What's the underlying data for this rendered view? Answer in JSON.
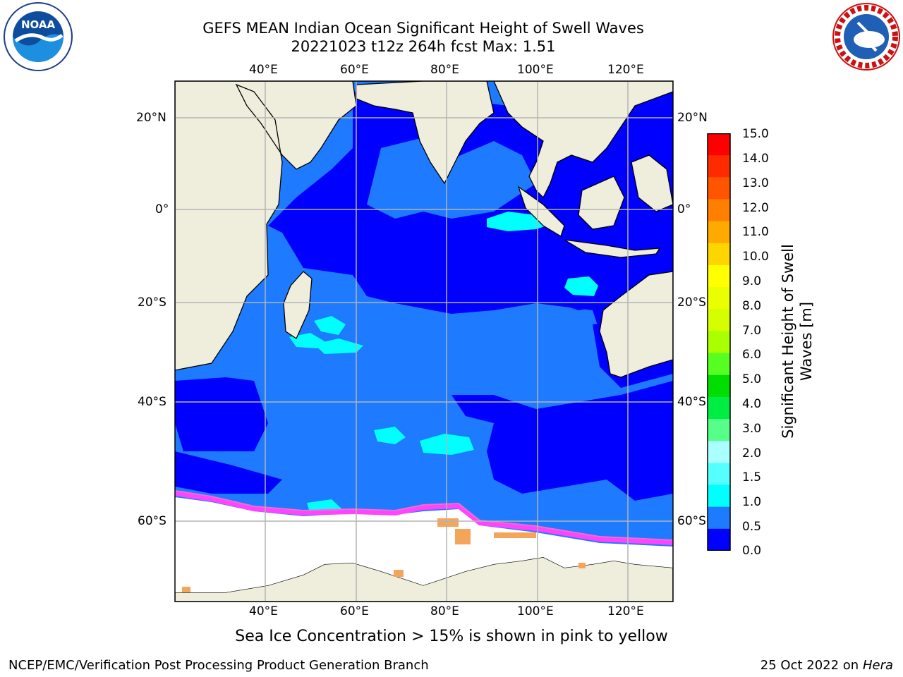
{
  "header": {
    "title_line1": "GEFS MEAN Indian Ocean Significant Height of Swell Waves",
    "title_line2": "20221023 t12z 264h fcst   Max: 1.51"
  },
  "logos": {
    "left": {
      "name": "noaa-logo",
      "text": "NOAA"
    },
    "right": {
      "name": "nws-logo",
      "text": "NATIONAL WEATHER SERVICE"
    }
  },
  "map": {
    "lon_labels": [
      "40°E",
      "60°E",
      "80°E",
      "100°E",
      "120°E"
    ],
    "lat_labels": [
      "20°N",
      "0°",
      "20°S",
      "40°S",
      "60°S"
    ],
    "colors": {
      "ocean_dark": "#0000ff",
      "ocean_mid": "#1e7bff",
      "swell_cyan": "#00ffff",
      "land": "#efeedc",
      "ice": "#ffffff",
      "ice_pink": "#ff44ff",
      "ice_orange": "#f5a55a"
    }
  },
  "colorbar": {
    "ticks": [
      "15.0",
      "14.0",
      "13.0",
      "12.0",
      "11.0",
      "10.0",
      "9.0",
      "8.0",
      "7.0",
      "6.0",
      "5.0",
      "4.0",
      "3.0",
      "2.0",
      "1.5",
      "1.0",
      "0.5",
      "0.0"
    ],
    "label_line1": "Significant Height of Swell",
    "label_line2": "Waves [m]",
    "colors": [
      "#ff0000",
      "#ff2a00",
      "#ff5500",
      "#ff8000",
      "#ffaa00",
      "#ffd500",
      "#ffff00",
      "#eaff00",
      "#d5ff00",
      "#aaff00",
      "#55ff22",
      "#00dd00",
      "#00ee44",
      "#55ff88",
      "#aaffff",
      "#55ffff",
      "#00ffff",
      "#1e7bff",
      "#0000ff"
    ]
  },
  "caption": "Sea Ice Concentration > 15% is shown in pink to yellow",
  "footer": {
    "left": "NCEP/EMC/Verification Post Processing Product Generation Branch",
    "right_date": "25 Oct 2022 on ",
    "right_machine": "Hera"
  }
}
